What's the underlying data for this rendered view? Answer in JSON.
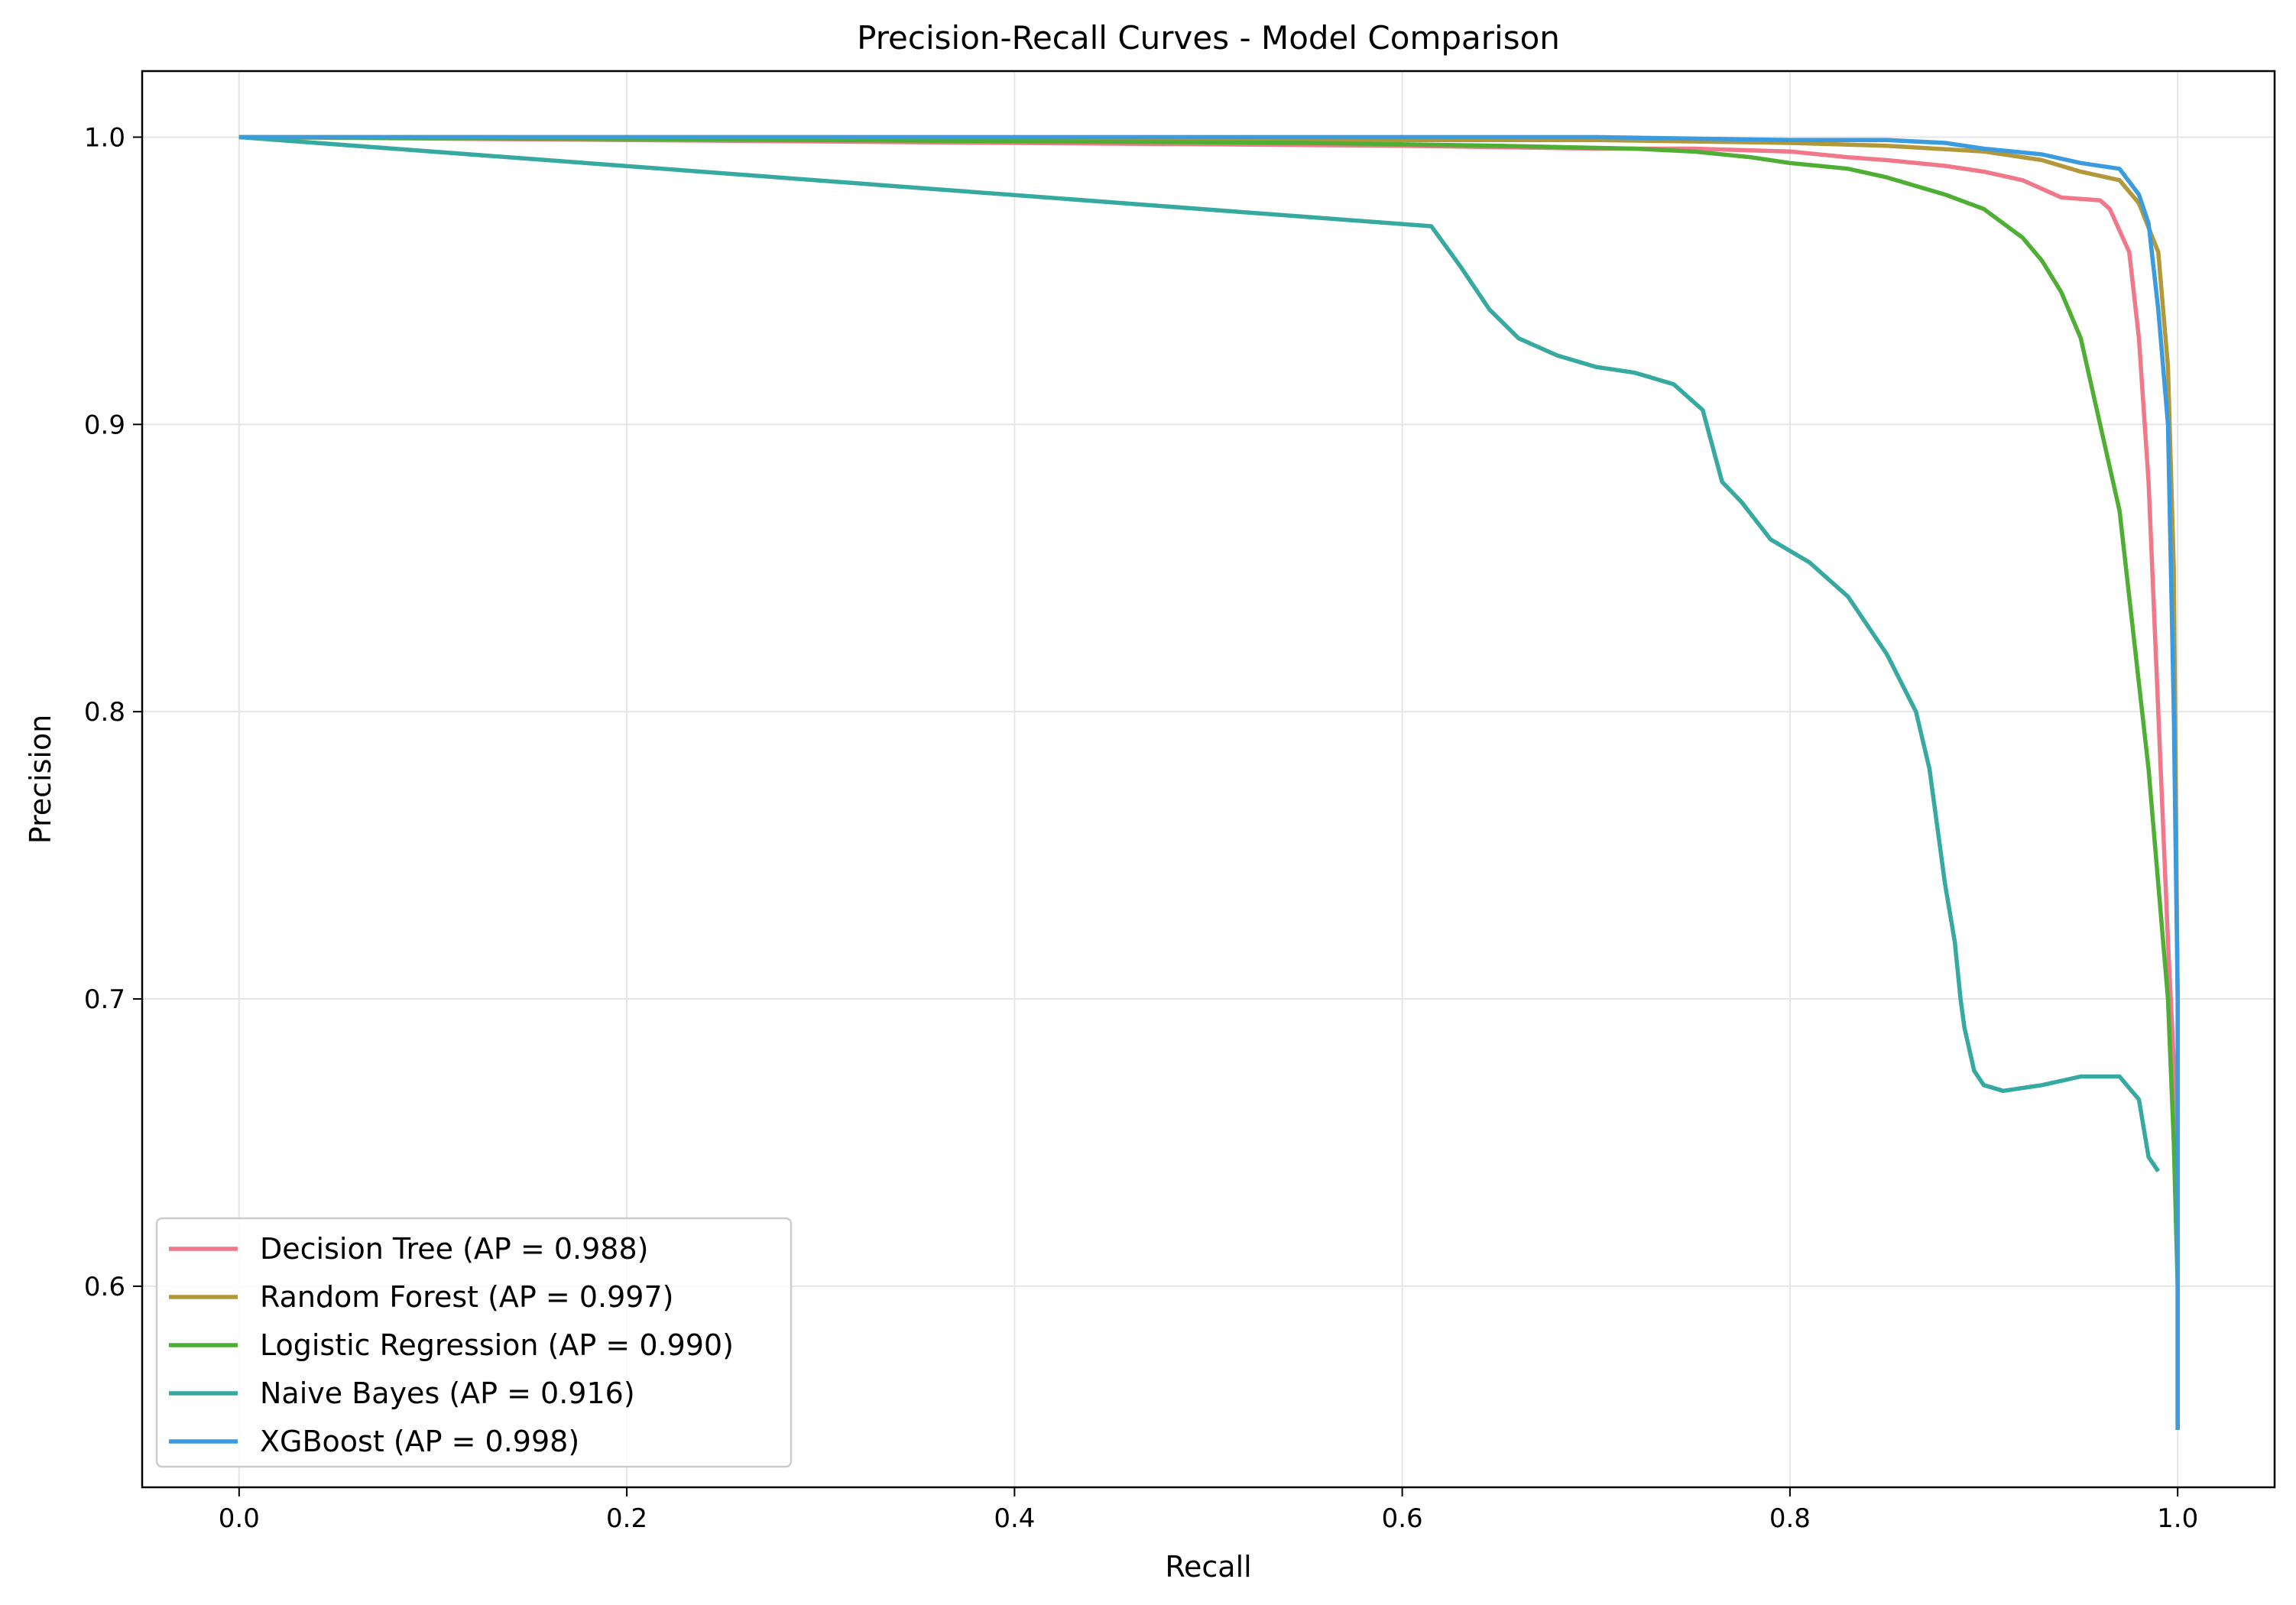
{
  "chart_data": {
    "type": "line",
    "title": "Precision-Recall Curves - Model Comparison",
    "xlabel": "Recall",
    "ylabel": "Precision",
    "xlim": [
      -0.05,
      1.05
    ],
    "ylim": [
      0.53,
      1.023
    ],
    "grid": true,
    "legend_position": "lower-left",
    "xticks": [
      0.0,
      0.2,
      0.4,
      0.6,
      0.8,
      1.0
    ],
    "xtick_labels": [
      "0.0",
      "0.2",
      "0.4",
      "0.6",
      "0.8",
      "1.0"
    ],
    "yticks": [
      0.6,
      0.7,
      0.8,
      0.9,
      1.0
    ],
    "ytick_labels": [
      "0.6",
      "0.7",
      "0.8",
      "0.9",
      "1.0"
    ],
    "series": [
      {
        "name": "Decision Tree (AP = 0.988)",
        "color": "#f0788a",
        "x": [
          0.0,
          0.2,
          0.4,
          0.6,
          0.7,
          0.75,
          0.8,
          0.83,
          0.85,
          0.88,
          0.9,
          0.92,
          0.94,
          0.96,
          0.965,
          0.975,
          0.98,
          0.985,
          0.99,
          0.995,
          1.0,
          1.0
        ],
        "y": [
          1.0,
          0.999,
          0.998,
          0.997,
          0.996,
          0.996,
          0.995,
          0.993,
          0.992,
          0.99,
          0.988,
          0.985,
          0.979,
          0.978,
          0.975,
          0.96,
          0.93,
          0.88,
          0.8,
          0.72,
          0.65,
          0.55
        ]
      },
      {
        "name": "Random Forest (AP = 0.997)",
        "color": "#b3983a",
        "x": [
          0.0,
          0.3,
          0.6,
          0.7,
          0.8,
          0.85,
          0.9,
          0.93,
          0.95,
          0.97,
          0.98,
          0.99,
          0.995,
          0.998,
          1.0,
          1.0
        ],
        "y": [
          1.0,
          1.0,
          0.999,
          0.999,
          0.998,
          0.997,
          0.995,
          0.992,
          0.988,
          0.985,
          0.977,
          0.96,
          0.92,
          0.85,
          0.7,
          0.55
        ]
      },
      {
        "name": "Logistic Regression (AP = 0.990)",
        "color": "#4faf35",
        "x": [
          0.0,
          0.3,
          0.55,
          0.65,
          0.72,
          0.75,
          0.78,
          0.8,
          0.83,
          0.85,
          0.87,
          0.88,
          0.9,
          0.92,
          0.93,
          0.94,
          0.95,
          0.96,
          0.97,
          0.975,
          0.985,
          0.99,
          0.995,
          0.998,
          1.0,
          1.0
        ],
        "y": [
          1.0,
          0.999,
          0.998,
          0.997,
          0.996,
          0.995,
          0.993,
          0.991,
          0.989,
          0.986,
          0.982,
          0.98,
          0.975,
          0.965,
          0.957,
          0.946,
          0.93,
          0.9,
          0.87,
          0.84,
          0.78,
          0.74,
          0.7,
          0.65,
          0.6,
          0.55
        ]
      },
      {
        "name": "Naive Bayes (AP = 0.916)",
        "color": "#36aaa0",
        "x": [
          0.0,
          0.615,
          0.63,
          0.645,
          0.66,
          0.68,
          0.7,
          0.72,
          0.74,
          0.755,
          0.765,
          0.775,
          0.79,
          0.81,
          0.83,
          0.85,
          0.865,
          0.872,
          0.88,
          0.885,
          0.888,
          0.89,
          0.895,
          0.9,
          0.91,
          0.93,
          0.95,
          0.97,
          0.98,
          0.985,
          0.99
        ],
        "y": [
          1.0,
          0.969,
          0.955,
          0.94,
          0.93,
          0.924,
          0.92,
          0.918,
          0.914,
          0.905,
          0.88,
          0.873,
          0.86,
          0.852,
          0.84,
          0.82,
          0.8,
          0.78,
          0.74,
          0.72,
          0.7,
          0.69,
          0.675,
          0.67,
          0.668,
          0.67,
          0.673,
          0.673,
          0.665,
          0.645,
          0.64
        ]
      },
      {
        "name": "XGBoost (AP = 0.998)",
        "color": "#3b9be0",
        "x": [
          0.0,
          0.3,
          0.6,
          0.7,
          0.8,
          0.85,
          0.88,
          0.9,
          0.93,
          0.95,
          0.97,
          0.98,
          0.985,
          0.99,
          0.995,
          0.998,
          1.0,
          1.0
        ],
        "y": [
          1.0,
          1.0,
          1.0,
          1.0,
          0.999,
          0.999,
          0.998,
          0.996,
          0.994,
          0.991,
          0.989,
          0.98,
          0.97,
          0.94,
          0.9,
          0.8,
          0.7,
          0.55
        ]
      }
    ]
  }
}
